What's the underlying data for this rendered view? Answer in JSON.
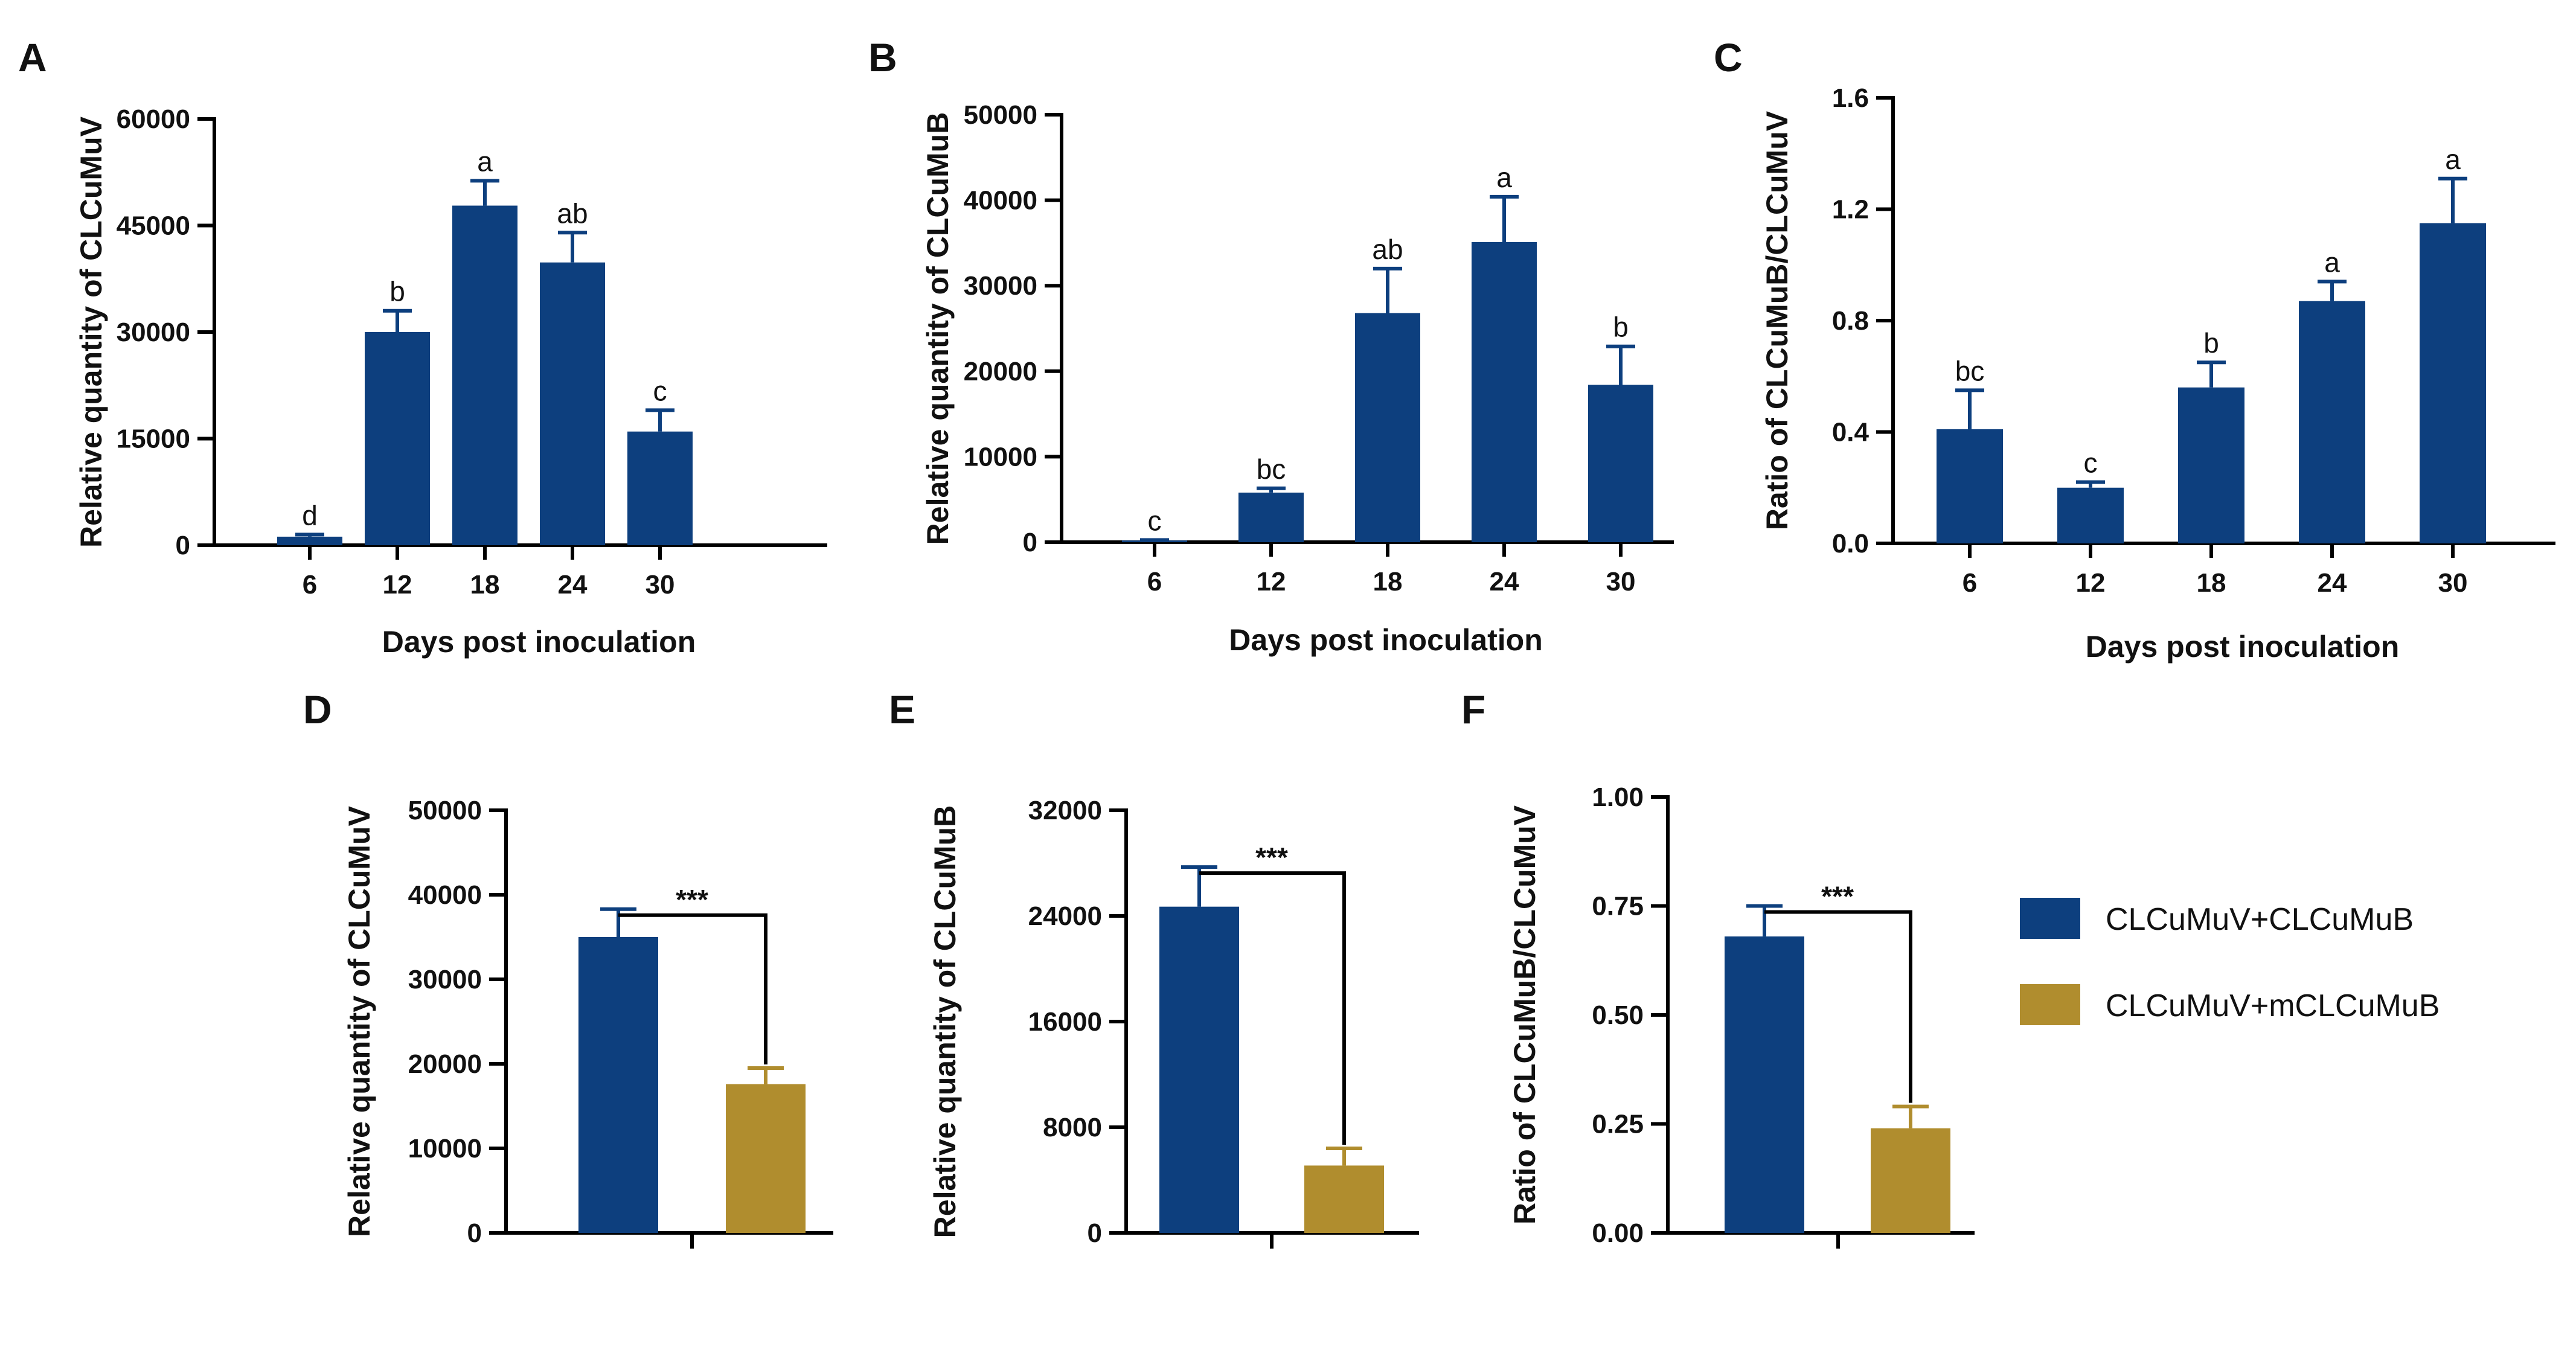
{
  "colors": {
    "blue": "#0D3F7E",
    "gold": "#B08D2E",
    "axis": "#000000"
  },
  "legend": {
    "items": [
      {
        "label": "CLCuMuV+CLCuMuB",
        "color": "#0D3F7E"
      },
      {
        "label": "CLCuMuV+mCLCuMuB",
        "color": "#B08D2E"
      }
    ]
  },
  "chart_data": [
    {
      "panel": "A",
      "type": "bar",
      "xlabel": "Days post inoculation",
      "ylabel": "Relative quantity of CLCuMuV",
      "categories": [
        "6",
        "12",
        "18",
        "24",
        "30"
      ],
      "values": [
        1200,
        30000,
        47800,
        39800,
        16000
      ],
      "errors": [
        300,
        3000,
        3500,
        4200,
        3000
      ],
      "letters": [
        "d",
        "b",
        "a",
        "ab",
        "c"
      ],
      "ylim": [
        0,
        60000
      ],
      "yticks": [
        0,
        15000,
        30000,
        45000,
        60000
      ],
      "ytick_labels": [
        "0",
        "15000",
        "30000",
        "45000",
        "60000"
      ]
    },
    {
      "panel": "B",
      "type": "bar",
      "xlabel": "Days post inoculation",
      "ylabel": "Relative quantity of CLCuMuB",
      "categories": [
        "6",
        "12",
        "18",
        "24",
        "30"
      ],
      "values": [
        200,
        5800,
        26800,
        35100,
        18400
      ],
      "errors": [
        60,
        500,
        5200,
        5300,
        4500
      ],
      "letters": [
        "c",
        "bc",
        "ab",
        "a",
        "b"
      ],
      "ylim": [
        0,
        50000
      ],
      "yticks": [
        0,
        10000,
        20000,
        30000,
        40000,
        50000
      ],
      "ytick_labels": [
        "0",
        "10000",
        "20000",
        "30000",
        "40000",
        "50000"
      ]
    },
    {
      "panel": "C",
      "type": "bar",
      "xlabel": "Days post inoculation",
      "ylabel": "Ratio of CLCuMuB/CLCuMuV",
      "categories": [
        "6",
        "12",
        "18",
        "24",
        "30"
      ],
      "values": [
        0.41,
        0.2,
        0.56,
        0.87,
        1.15
      ],
      "errors": [
        0.14,
        0.02,
        0.09,
        0.07,
        0.16
      ],
      "letters": [
        "bc",
        "c",
        "b",
        "a",
        "a"
      ],
      "ylim": [
        0,
        1.6
      ],
      "yticks": [
        0,
        0.4,
        0.8,
        1.2,
        1.6
      ],
      "ytick_labels": [
        "0.0",
        "0.4",
        "0.8",
        "1.2",
        "1.6"
      ]
    },
    {
      "panel": "D",
      "type": "bar",
      "xlabel": "",
      "ylabel": "Relative quantity of CLCuMuV",
      "series": [
        {
          "name": "CLCuMuV+CLCuMuB",
          "value": 35000,
          "error": 3300
        },
        {
          "name": "CLCuMuV+mCLCuMuB",
          "value": 17600,
          "error": 1900
        }
      ],
      "significance": "***",
      "ylim": [
        0,
        50000
      ],
      "yticks": [
        0,
        10000,
        20000,
        30000,
        40000,
        50000
      ],
      "ytick_labels": [
        "0",
        "10000",
        "20000",
        "30000",
        "40000",
        "50000"
      ]
    },
    {
      "panel": "E",
      "type": "bar",
      "xlabel": "",
      "ylabel": "Relative quantity of CLCuMuB",
      "series": [
        {
          "name": "CLCuMuV+CLCuMuB",
          "value": 24700,
          "error": 3000
        },
        {
          "name": "CLCuMuV+mCLCuMuB",
          "value": 5100,
          "error": 1300
        }
      ],
      "significance": "***",
      "ylim": [
        0,
        32000
      ],
      "yticks": [
        0,
        8000,
        16000,
        24000,
        32000
      ],
      "ytick_labels": [
        "0",
        "8000",
        "16000",
        "24000",
        "32000"
      ]
    },
    {
      "panel": "F",
      "type": "bar",
      "xlabel": "",
      "ylabel": "Ratio of CLCuMuB/CLCuMuV",
      "series": [
        {
          "name": "CLCuMuV+CLCuMuB",
          "value": 0.68,
          "error": 0.07
        },
        {
          "name": "CLCuMuV+mCLCuMuB",
          "value": 0.24,
          "error": 0.05
        }
      ],
      "significance": "***",
      "ylim": [
        0,
        1.0
      ],
      "yticks": [
        0,
        0.25,
        0.5,
        0.75,
        1.0
      ],
      "ytick_labels": [
        "0.00",
        "0.25",
        "0.50",
        "0.75",
        "1.00"
      ]
    }
  ]
}
